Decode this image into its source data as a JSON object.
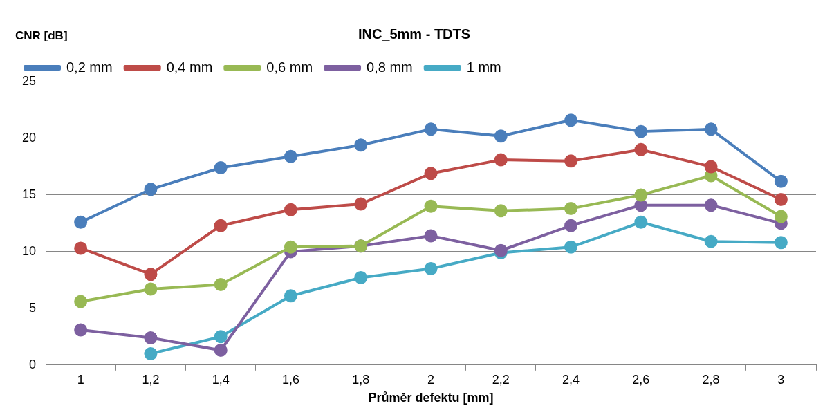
{
  "chart_data": {
    "type": "line",
    "title": "INC_5mm - TDTS",
    "xlabel": "Průměr defektu [mm]",
    "ylabel": "CNR [dB]",
    "categories": [
      "1",
      "1,2",
      "1,4",
      "1,6",
      "1,8",
      "2",
      "2,2",
      "2,4",
      "2,6",
      "2,8",
      "3"
    ],
    "series": [
      {
        "name": "0,2 mm",
        "color": "#4a7ebb",
        "values": [
          12.6,
          15.5,
          17.4,
          18.4,
          19.4,
          20.8,
          20.2,
          21.6,
          20.6,
          20.8,
          16.2
        ]
      },
      {
        "name": "0,4 mm",
        "color": "#be4b48",
        "values": [
          10.3,
          8.0,
          12.3,
          13.7,
          14.2,
          16.9,
          18.1,
          18.0,
          19.0,
          17.5,
          14.6
        ]
      },
      {
        "name": "0,6 mm",
        "color": "#98b954",
        "values": [
          5.6,
          6.7,
          7.1,
          10.4,
          10.5,
          14.0,
          13.6,
          13.8,
          15.0,
          16.7,
          13.1
        ]
      },
      {
        "name": "0,8 mm",
        "color": "#7d60a0",
        "values": [
          3.1,
          2.4,
          1.3,
          10.0,
          10.5,
          11.4,
          10.1,
          12.3,
          14.1,
          14.1,
          12.5
        ]
      },
      {
        "name": "1 mm",
        "color": "#46aac5",
        "values": [
          null,
          1.0,
          2.5,
          6.1,
          7.7,
          8.5,
          9.9,
          10.4,
          12.6,
          10.9,
          10.8
        ]
      }
    ],
    "ylim": [
      0,
      25
    ],
    "yticks": [
      0,
      5,
      10,
      15,
      20,
      25
    ],
    "grid": "y",
    "legend": "top left",
    "marker": "circle",
    "line_style": "solid"
  }
}
